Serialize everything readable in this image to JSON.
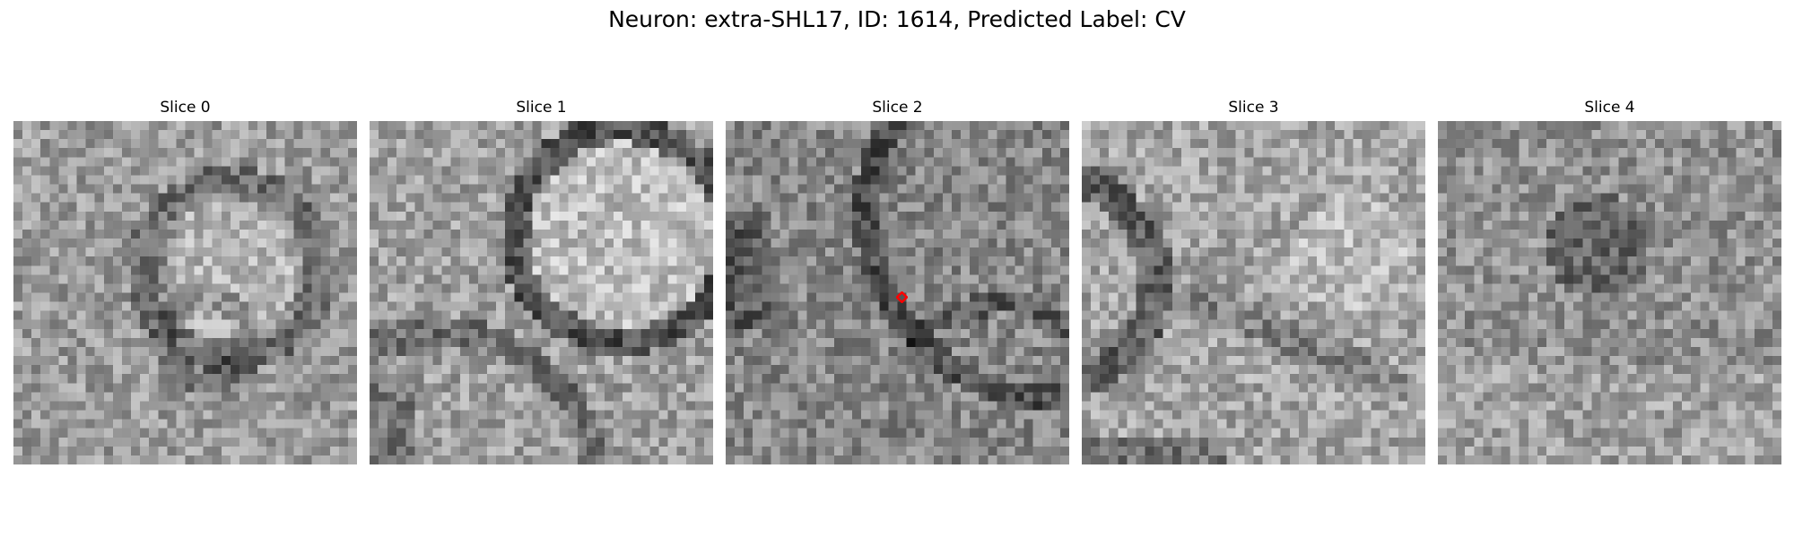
{
  "figure": {
    "title": "Neuron: extra-SHL17, ID: 1614, Predicted Label: CV"
  },
  "panels": [
    {
      "title": "Slice 0",
      "pattern": "blob-right"
    },
    {
      "title": "Slice 1",
      "pattern": "ring-large"
    },
    {
      "title": "Slice 2",
      "pattern": "dark-arc",
      "marker": {
        "color": "#ff0000",
        "shape": "diamond",
        "grid_x": 19,
        "grid_y": 19
      }
    },
    {
      "title": "Slice 3",
      "pattern": "dark-band"
    },
    {
      "title": "Slice 4",
      "pattern": "noise-dark-center"
    }
  ],
  "grid_size": 38,
  "colormap": "gray"
}
